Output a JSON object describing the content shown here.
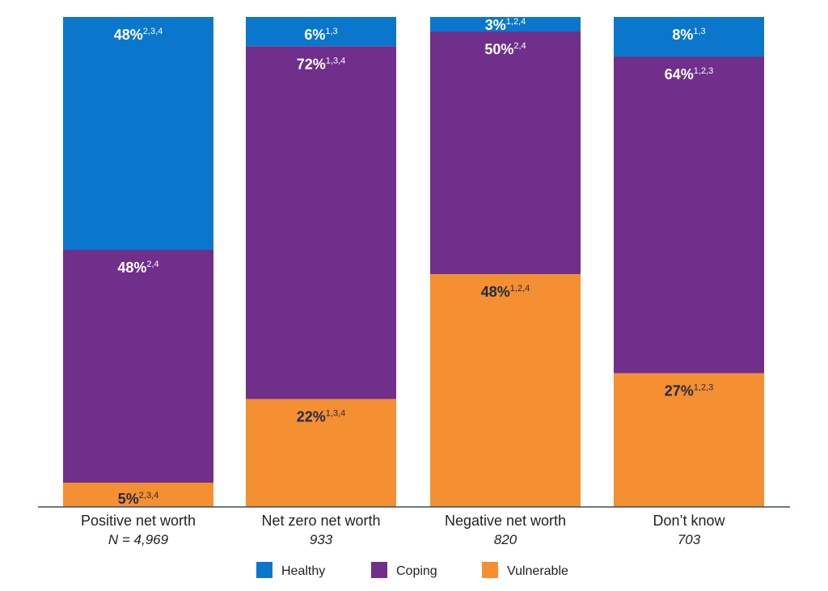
{
  "chart_data": {
    "type": "bar",
    "stacked": true,
    "categories": [
      "Positive net worth",
      "Net zero net worth",
      "Negative net worth",
      "Don’t know"
    ],
    "category_notes": [
      "N = 4,969",
      "933",
      "820",
      "703"
    ],
    "series": [
      {
        "name": "Healthy",
        "color": "#0a77cc",
        "values": [
          48,
          6,
          3,
          8
        ],
        "labels": [
          "48%",
          "6%",
          "3%",
          "8%"
        ],
        "superscripts": [
          "2,3,4",
          "1,3",
          "1,2,4",
          "1,3"
        ],
        "label_color": "#ffffff"
      },
      {
        "name": "Coping",
        "color": "#6f2f8a",
        "values": [
          48,
          72,
          50,
          64
        ],
        "labels": [
          "48%",
          "72%",
          "50%",
          "64%"
        ],
        "superscripts": [
          "2,4",
          "1,3,4",
          "2,4",
          "1,2,3"
        ],
        "label_color": "#ffffff"
      },
      {
        "name": "Vulnerable",
        "color": "#f48f32",
        "values": [
          5,
          22,
          48,
          27
        ],
        "labels": [
          "5%",
          "22%",
          "48%",
          "27%"
        ],
        "superscripts": [
          "2,3,4",
          "1,3,4",
          "1,2,4",
          "1,2,3"
        ],
        "label_color": "#1f2a44"
      }
    ],
    "ylim": [
      0,
      100
    ],
    "grid": false,
    "legend_position": "bottom"
  }
}
